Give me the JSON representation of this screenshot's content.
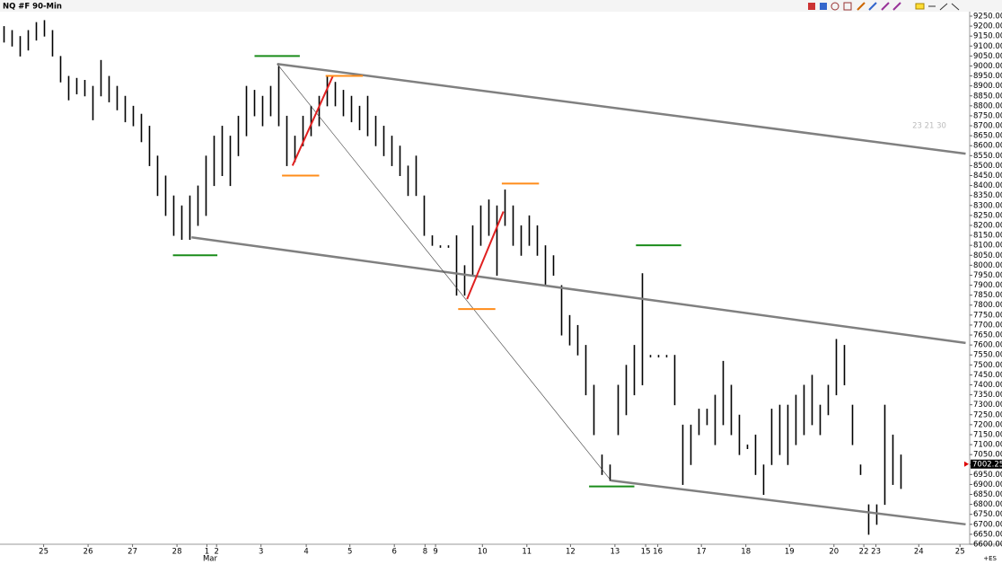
{
  "chart_data": {
    "type": "ohlc",
    "title": "NQ #F 90-Min",
    "month_label": "Mar",
    "last_price": {
      "value": 7002.25,
      "label": "7002.25"
    },
    "watermark": "23 21 30",
    "symbol_tag": "+ES",
    "bar_color": "#000000",
    "ylim": [
      6582,
      9268
    ],
    "xlim": [
      -0.5,
      119.5
    ],
    "yticks": [
      {
        "value": 6600,
        "label": "6600.00"
      },
      {
        "value": 6650,
        "label": "6650.00"
      },
      {
        "value": 6700,
        "label": "6700.00"
      },
      {
        "value": 6750,
        "label": "6750.00"
      },
      {
        "value": 6800,
        "label": "6800.00"
      },
      {
        "value": 6850,
        "label": "6850.00"
      },
      {
        "value": 6900,
        "label": "6900.00"
      },
      {
        "value": 6950,
        "label": "6950.00"
      },
      {
        "value": 7000,
        "label": "7000.00"
      },
      {
        "value": 7050,
        "label": "7050.00"
      },
      {
        "value": 7100,
        "label": "7100.00"
      },
      {
        "value": 7150,
        "label": "7150.00"
      },
      {
        "value": 7200,
        "label": "7200.00"
      },
      {
        "value": 7250,
        "label": "7250.00"
      },
      {
        "value": 7300,
        "label": "7300.00"
      },
      {
        "value": 7350,
        "label": "7350.00"
      },
      {
        "value": 7400,
        "label": "7400.00"
      },
      {
        "value": 7450,
        "label": "7450.00"
      },
      {
        "value": 7500,
        "label": "7500.00"
      },
      {
        "value": 7550,
        "label": "7550.00"
      },
      {
        "value": 7600,
        "label": "7600.00"
      },
      {
        "value": 7650,
        "label": "7650.00"
      },
      {
        "value": 7700,
        "label": "7700.00"
      },
      {
        "value": 7750,
        "label": "7750.00"
      },
      {
        "value": 7800,
        "label": "7800.00"
      },
      {
        "value": 7850,
        "label": "7850.00"
      },
      {
        "value": 7900,
        "label": "7900.00"
      },
      {
        "value": 7950,
        "label": "7950.00"
      },
      {
        "value": 8000,
        "label": "8000.00"
      },
      {
        "value": 8050,
        "label": "8050.00"
      },
      {
        "value": 8100,
        "label": "8100.00"
      },
      {
        "value": 8150,
        "label": "8150.00"
      },
      {
        "value": 8200,
        "label": "8200.00"
      },
      {
        "value": 8250,
        "label": "8250.00"
      },
      {
        "value": 8300,
        "label": "8300.00"
      },
      {
        "value": 8350,
        "label": "8350.00"
      },
      {
        "value": 8400,
        "label": "8400.00"
      },
      {
        "value": 8450,
        "label": "8450.00"
      },
      {
        "value": 8500,
        "label": "8500.00"
      },
      {
        "value": 8550,
        "label": "8550.00"
      },
      {
        "value": 8600,
        "label": "8600.00"
      },
      {
        "value": 8650,
        "label": "8650.00"
      },
      {
        "value": 8700,
        "label": "8700.00"
      },
      {
        "value": 8750,
        "label": "8750.00"
      },
      {
        "value": 8800,
        "label": "8800.00"
      },
      {
        "value": 8850,
        "label": "8850.00"
      },
      {
        "value": 8900,
        "label": "8900.00"
      },
      {
        "value": 8950,
        "label": "8950.00"
      },
      {
        "value": 9000,
        "label": "9000.00"
      },
      {
        "value": 9050,
        "label": "9050.00"
      },
      {
        "value": 9100,
        "label": "9100.00"
      },
      {
        "value": 9150,
        "label": "9150.00"
      },
      {
        "value": 9200,
        "label": "9200.00"
      },
      {
        "value": 9250,
        "label": "9250.00"
      }
    ],
    "xticks": [
      {
        "value": 4.9,
        "label": "25"
      },
      {
        "value": 10.4,
        "label": "26"
      },
      {
        "value": 15.9,
        "label": "27"
      },
      {
        "value": 21.4,
        "label": "28"
      },
      {
        "value": 25.1,
        "label": "1"
      },
      {
        "value": 26.3,
        "label": "2"
      },
      {
        "value": 31.8,
        "label": "3"
      },
      {
        "value": 37.4,
        "label": "4"
      },
      {
        "value": 42.8,
        "label": "5"
      },
      {
        "value": 48.3,
        "label": "6"
      },
      {
        "value": 52.1,
        "label": "8"
      },
      {
        "value": 53.4,
        "label": "9"
      },
      {
        "value": 59.2,
        "label": "10"
      },
      {
        "value": 64.7,
        "label": "11"
      },
      {
        "value": 70.1,
        "label": "12"
      },
      {
        "value": 75.6,
        "label": "13"
      },
      {
        "value": 79.4,
        "label": "15"
      },
      {
        "value": 80.9,
        "label": "16"
      },
      {
        "value": 86.3,
        "label": "17"
      },
      {
        "value": 91.8,
        "label": "18"
      },
      {
        "value": 97.2,
        "label": "19"
      },
      {
        "value": 102.7,
        "label": "20"
      },
      {
        "value": 106.4,
        "label": "22"
      },
      {
        "value": 107.9,
        "label": "23"
      },
      {
        "value": 113.2,
        "label": "24"
      },
      {
        "value": 118.3,
        "label": "25"
      }
    ],
    "bars": [
      [
        9200,
        9120
      ],
      [
        9180,
        9100
      ],
      [
        9150,
        9050
      ],
      [
        9180,
        9080
      ],
      [
        9220,
        9130
      ],
      [
        9230,
        9150
      ],
      [
        9180,
        9050
      ],
      [
        9050,
        8920
      ],
      [
        8950,
        8830
      ],
      [
        8940,
        8860
      ],
      [
        8930,
        8850
      ],
      [
        8900,
        8730
      ],
      [
        9030,
        8850
      ],
      [
        8950,
        8820
      ],
      [
        8900,
        8780
      ],
      [
        8850,
        8720
      ],
      [
        8800,
        8700
      ],
      [
        8760,
        8620
      ],
      [
        8700,
        8500
      ],
      [
        8550,
        8350
      ],
      [
        8450,
        8250
      ],
      [
        8350,
        8150
      ],
      [
        8300,
        8130
      ],
      [
        8350,
        8130
      ],
      [
        8400,
        8200
      ],
      [
        8550,
        8250
      ],
      [
        8650,
        8400
      ],
      [
        8700,
        8450
      ],
      [
        8650,
        8400
      ],
      [
        8750,
        8550
      ],
      [
        8900,
        8650
      ],
      [
        8880,
        8750
      ],
      [
        8850,
        8700
      ],
      [
        8900,
        8750
      ],
      [
        9000,
        8700
      ],
      [
        8750,
        8500
      ],
      [
        8650,
        8520
      ],
      [
        8750,
        8600
      ],
      [
        8800,
        8650
      ],
      [
        8850,
        8700
      ],
      [
        8950,
        8800
      ],
      [
        8920,
        8800
      ],
      [
        8880,
        8750
      ],
      [
        8850,
        8720
      ],
      [
        8800,
        8680
      ],
      [
        8850,
        8650
      ],
      [
        8750,
        8600
      ],
      [
        8700,
        8550
      ],
      [
        8650,
        8500
      ],
      [
        8600,
        8450
      ],
      [
        8500,
        8350
      ],
      [
        8550,
        8350
      ],
      [
        8350,
        8150
      ],
      [
        8150,
        8100
      ],
      [
        8100,
        8090
      ],
      [
        8100,
        8090
      ],
      [
        8150,
        7850
      ],
      [
        8000,
        7850
      ],
      [
        8200,
        7950
      ],
      [
        8300,
        8100
      ],
      [
        8330,
        8150
      ],
      [
        8300,
        7950
      ],
      [
        8380,
        8200
      ],
      [
        8300,
        8100
      ],
      [
        8200,
        8050
      ],
      [
        8250,
        8100
      ],
      [
        8200,
        8050
      ],
      [
        8100,
        7900
      ],
      [
        8050,
        7950
      ],
      [
        7900,
        7650
      ],
      [
        7750,
        7600
      ],
      [
        7700,
        7550
      ],
      [
        7600,
        7350
      ],
      [
        7400,
        7150
      ],
      [
        7050,
        6950
      ],
      [
        7000,
        6920
      ],
      [
        7400,
        7150
      ],
      [
        7500,
        7250
      ],
      [
        7600,
        7350
      ],
      [
        7960,
        7400
      ],
      [
        7550,
        7540
      ],
      [
        7550,
        7540
      ],
      [
        7550,
        7540
      ],
      [
        7550,
        7300
      ],
      [
        7200,
        6900
      ],
      [
        7200,
        7000
      ],
      [
        7280,
        7150
      ],
      [
        7280,
        7200
      ],
      [
        7350,
        7100
      ],
      [
        7520,
        7200
      ],
      [
        7400,
        7150
      ],
      [
        7250,
        7050
      ],
      [
        7100,
        7080
      ],
      [
        7150,
        6950
      ],
      [
        7000,
        6850
      ],
      [
        7280,
        7000
      ],
      [
        7300,
        7050
      ],
      [
        7300,
        7000
      ],
      [
        7350,
        7100
      ],
      [
        7400,
        7150
      ],
      [
        7450,
        7200
      ],
      [
        7300,
        7150
      ],
      [
        7400,
        7250
      ],
      [
        7630,
        7350
      ],
      [
        7600,
        7400
      ],
      [
        7300,
        7100
      ],
      [
        7000,
        6950
      ],
      [
        6800,
        6650
      ],
      [
        6800,
        6700
      ],
      [
        7300,
        6800
      ],
      [
        7150,
        6900
      ],
      [
        7050,
        6880
      ]
    ],
    "drawings": [
      {
        "color": "#808080",
        "x": [
          33.8,
          119
        ],
        "y": [
          9010,
          8560
        ]
      },
      {
        "color": "#808080",
        "x": [
          23.2,
          119
        ],
        "y": [
          8140,
          7610
        ]
      },
      {
        "color": "#808080",
        "x": [
          75.1,
          119
        ],
        "y": [
          6920,
          6700
        ]
      },
      {
        "color": "#404040",
        "x": [
          33.8,
          75.1
        ],
        "y": [
          9010,
          6920
        ]
      },
      {
        "color": "#e02020",
        "x": [
          35.7,
          40.7
        ],
        "y": [
          8500,
          8950
        ]
      },
      {
        "color": "#e02020",
        "x": [
          57.3,
          61.8
        ],
        "y": [
          7830,
          8270
        ]
      },
      {
        "color": "#1a8c1a",
        "x": [
          31,
          36.6
        ],
        "y": [
          9050,
          9050
        ]
      },
      {
        "color": "#1a8c1a",
        "x": [
          20.9,
          26.4
        ],
        "y": [
          8050,
          8050
        ]
      },
      {
        "color": "#1a8c1a",
        "x": [
          78.2,
          83.8
        ],
        "y": [
          8100,
          8100
        ]
      },
      {
        "color": "#1a8c1a",
        "x": [
          72.4,
          78
        ],
        "y": [
          6890,
          6890
        ]
      },
      {
        "color": "#ff8c1a",
        "x": [
          39.8,
          44.4
        ],
        "y": [
          8950,
          8950
        ]
      },
      {
        "color": "#ff8c1a",
        "x": [
          34.4,
          39
        ],
        "y": [
          8450,
          8450
        ]
      },
      {
        "color": "#ff8c1a",
        "x": [
          61.6,
          66.2
        ],
        "y": [
          8410,
          8410
        ]
      },
      {
        "color": "#ff8c1a",
        "x": [
          56.2,
          60.8
        ],
        "y": [
          7780,
          7780
        ]
      }
    ]
  }
}
